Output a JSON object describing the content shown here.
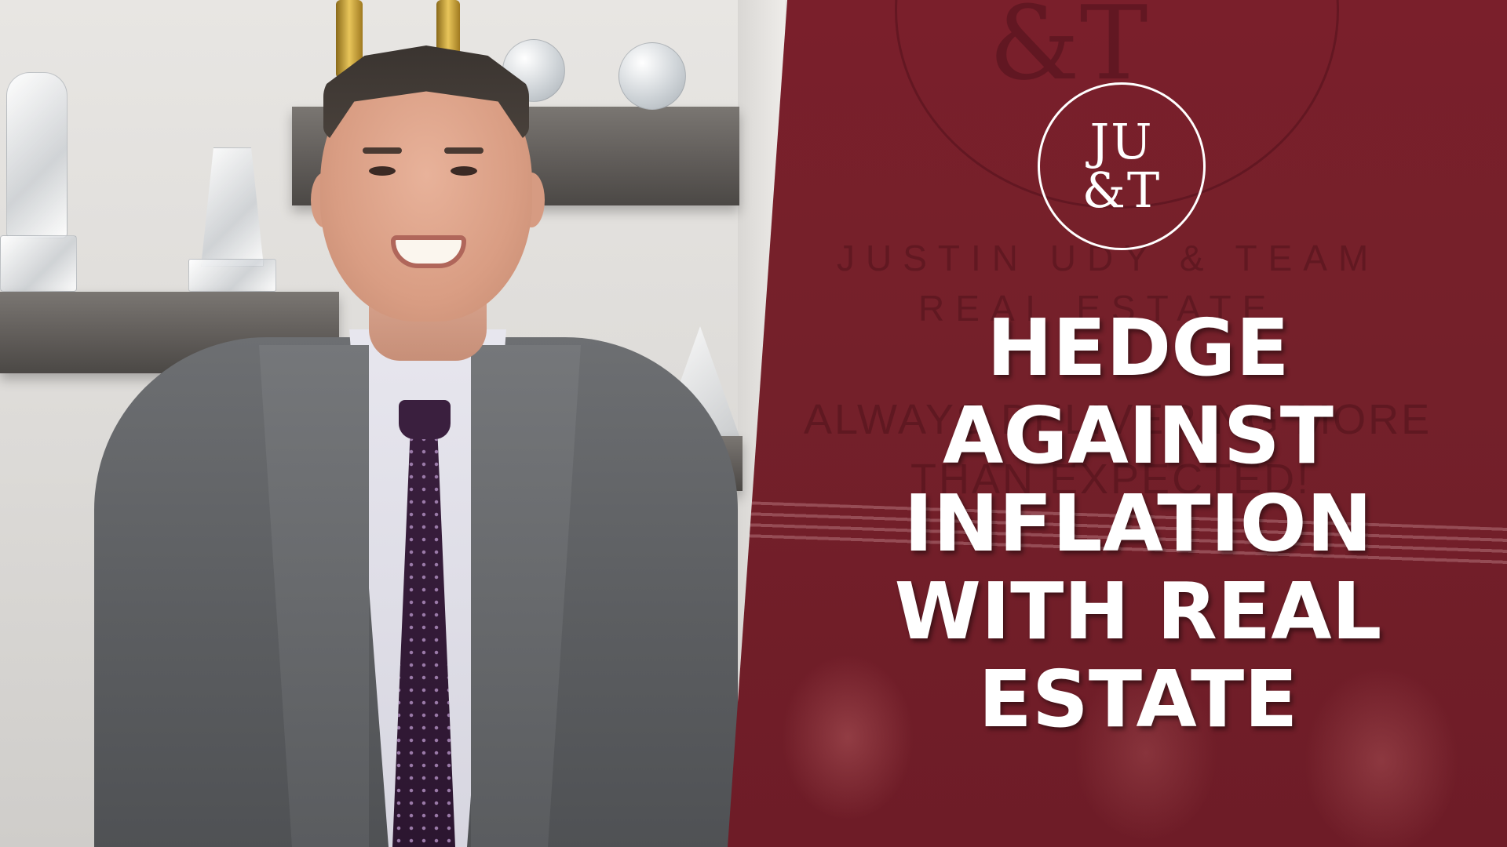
{
  "logo": {
    "line1": "JU",
    "line2": "&T",
    "ghost_monogram": "&T"
  },
  "background_text": {
    "company": "JUSTIN UDY & TEAM",
    "subtitle": "REAL ESTATE",
    "slogan_line1": "ALWAYS DELIVERING MORE",
    "slogan_line2": "THAN EXPECTED!"
  },
  "headline": {
    "lines": [
      "HEDGE",
      "AGAINST",
      "INFLATION",
      "WITH REAL",
      "ESTATE"
    ]
  },
  "colors": {
    "brand_red": "#74202a",
    "text_white": "#ffffff"
  }
}
